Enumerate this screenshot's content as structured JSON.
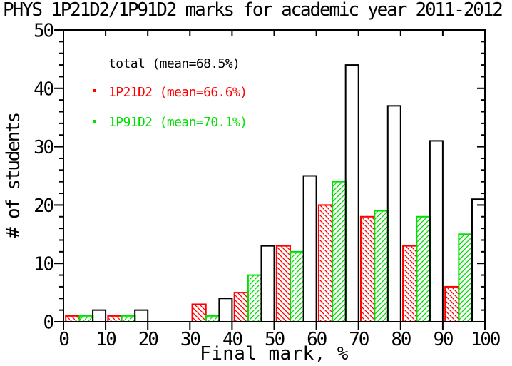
{
  "chart_data": {
    "type": "bar",
    "title": "PHYS 1P21D2/1P91D2 marks for academic year 2011-2012",
    "xlabel": "Final mark, %",
    "ylabel": "# of students",
    "xlim": [
      0,
      100
    ],
    "ylim": [
      0,
      50
    ],
    "x_ticks": [
      0,
      10,
      20,
      30,
      40,
      50,
      60,
      70,
      80,
      90,
      100
    ],
    "y_ticks": [
      0,
      10,
      20,
      30,
      40,
      50
    ],
    "y_minor_step": 2,
    "grid": false,
    "legend_position": "upper-left-inside",
    "bin_width": 10,
    "bin_starts": [
      0,
      10,
      20,
      30,
      40,
      50,
      60,
      70,
      80,
      90
    ],
    "series": [
      {
        "name": "1P21D2",
        "mean_pct": 66.6,
        "color": "#ff0000",
        "hatch": "\\",
        "offset": 0.55,
        "width": 3.25,
        "values": [
          1,
          1,
          0,
          3,
          5,
          13,
          20,
          18,
          13,
          6
        ]
      },
      {
        "name": "1P91D2",
        "mean_pct": 70.1,
        "color": "#00e000",
        "hatch": "/",
        "offset": 3.8,
        "width": 3.2,
        "values": [
          1,
          1,
          0,
          1,
          8,
          12,
          24,
          19,
          18,
          15
        ]
      },
      {
        "name": "total",
        "mean_pct": 68.5,
        "color": "#000000",
        "hatch": null,
        "offset": 6.95,
        "width": 3.05,
        "values": [
          2,
          2,
          0,
          4,
          13,
          25,
          44,
          37,
          31,
          21
        ]
      }
    ],
    "legend": [
      {
        "label": "total (mean=68.5%)",
        "color": "#000000",
        "marker": false
      },
      {
        "label": "1P21D2 (mean=66.6%)",
        "color": "#ff0000",
        "marker": true
      },
      {
        "label": "1P91D2 (mean=70.1%)",
        "color": "#00e000",
        "marker": true
      }
    ]
  }
}
